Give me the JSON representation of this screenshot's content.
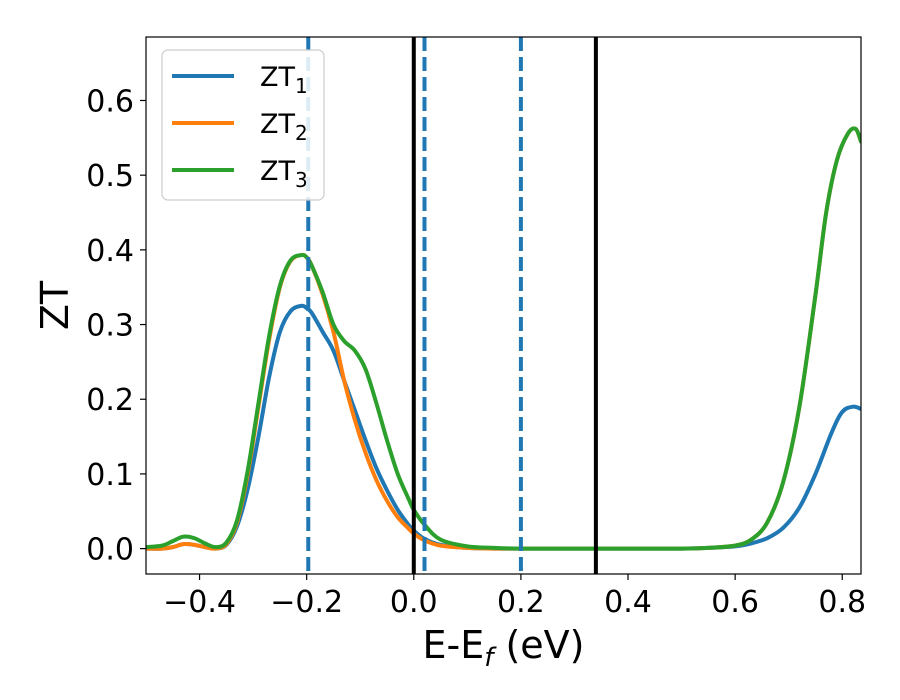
{
  "chart_data": {
    "type": "line",
    "title": "",
    "xlabel": {
      "main": "E-E",
      "sub": "f",
      "tail": " (eV)"
    },
    "ylabel": "ZT",
    "xlim": [
      -0.5,
      0.835
    ],
    "ylim": [
      -0.034,
      0.685
    ],
    "xticks": [
      -0.4,
      -0.2,
      0.0,
      0.2,
      0.4,
      0.6,
      0.8
    ],
    "xtick_labels": [
      "−0.4",
      "−0.2",
      "0.0",
      "0.2",
      "0.4",
      "0.6",
      "0.8"
    ],
    "yticks": [
      0.0,
      0.1,
      0.2,
      0.3,
      0.4,
      0.5,
      0.6
    ],
    "ytick_labels": [
      "0.0",
      "0.1",
      "0.2",
      "0.3",
      "0.4",
      "0.5",
      "0.6"
    ],
    "grid": false,
    "legend_position": "top-left",
    "series": [
      {
        "name": "ZT",
        "sub": "1",
        "color": "#1f77b4",
        "x": [
          -0.5,
          -0.47,
          -0.45,
          -0.43,
          -0.41,
          -0.39,
          -0.37,
          -0.35,
          -0.33,
          -0.31,
          -0.29,
          -0.27,
          -0.25,
          -0.23,
          -0.21,
          -0.2,
          -0.19,
          -0.17,
          -0.15,
          -0.13,
          -0.11,
          -0.09,
          -0.07,
          -0.05,
          -0.03,
          -0.01,
          0.0,
          0.02,
          0.05,
          0.1,
          0.15,
          0.2,
          0.3,
          0.4,
          0.5,
          0.55,
          0.6,
          0.63,
          0.66,
          0.69,
          0.72,
          0.75,
          0.78,
          0.8,
          0.82,
          0.835
        ],
        "y": [
          0.0,
          0.0,
          0.002,
          0.006,
          0.005,
          0.002,
          0.0,
          0.005,
          0.03,
          0.08,
          0.15,
          0.23,
          0.29,
          0.318,
          0.325,
          0.322,
          0.315,
          0.29,
          0.265,
          0.225,
          0.185,
          0.145,
          0.108,
          0.078,
          0.052,
          0.032,
          0.024,
          0.013,
          0.005,
          0.001,
          0.0,
          0.0,
          0.0,
          0.0,
          0.0,
          0.001,
          0.003,
          0.007,
          0.014,
          0.028,
          0.055,
          0.1,
          0.155,
          0.183,
          0.19,
          0.187
        ]
      },
      {
        "name": "ZT",
        "sub": "2",
        "color": "#ff7f0e",
        "x": [
          -0.5,
          -0.47,
          -0.45,
          -0.43,
          -0.41,
          -0.39,
          -0.37,
          -0.35,
          -0.33,
          -0.31,
          -0.29,
          -0.27,
          -0.25,
          -0.23,
          -0.21,
          -0.2,
          -0.19,
          -0.17,
          -0.15,
          -0.13,
          -0.11,
          -0.09,
          -0.07,
          -0.05,
          -0.03,
          -0.01,
          0.0,
          0.02,
          0.05,
          0.1,
          0.15,
          0.2,
          0.3,
          0.4,
          0.5,
          0.55,
          0.6,
          0.63,
          0.66,
          0.69,
          0.72,
          0.75,
          0.77,
          0.79,
          0.81,
          0.825,
          0.835
        ],
        "y": [
          0.0,
          0.0,
          0.002,
          0.006,
          0.005,
          0.002,
          0.0,
          0.006,
          0.035,
          0.1,
          0.19,
          0.28,
          0.35,
          0.385,
          0.393,
          0.39,
          0.378,
          0.34,
          0.29,
          0.225,
          0.172,
          0.128,
          0.092,
          0.064,
          0.042,
          0.027,
          0.02,
          0.011,
          0.004,
          0.001,
          0.0,
          0.0,
          0.0,
          0.0,
          0.0,
          0.001,
          0.004,
          0.012,
          0.035,
          0.09,
          0.19,
          0.34,
          0.45,
          0.52,
          0.555,
          0.562,
          0.545
        ]
      },
      {
        "name": "ZT",
        "sub": "3",
        "color": "#2ca02c",
        "x": [
          -0.5,
          -0.47,
          -0.45,
          -0.43,
          -0.41,
          -0.39,
          -0.37,
          -0.35,
          -0.33,
          -0.31,
          -0.29,
          -0.27,
          -0.25,
          -0.23,
          -0.21,
          -0.2,
          -0.19,
          -0.17,
          -0.15,
          -0.13,
          -0.11,
          -0.09,
          -0.07,
          -0.05,
          -0.03,
          -0.01,
          0.0,
          0.02,
          0.05,
          0.1,
          0.15,
          0.2,
          0.3,
          0.4,
          0.5,
          0.55,
          0.6,
          0.63,
          0.66,
          0.69,
          0.72,
          0.75,
          0.77,
          0.79,
          0.81,
          0.825,
          0.835
        ],
        "y": [
          0.002,
          0.004,
          0.01,
          0.016,
          0.014,
          0.007,
          0.002,
          0.008,
          0.038,
          0.105,
          0.195,
          0.285,
          0.352,
          0.386,
          0.393,
          0.39,
          0.378,
          0.343,
          0.3,
          0.278,
          0.265,
          0.24,
          0.195,
          0.145,
          0.1,
          0.067,
          0.052,
          0.032,
          0.012,
          0.003,
          0.001,
          0.0,
          0.0,
          0.0,
          0.0,
          0.001,
          0.004,
          0.012,
          0.035,
          0.09,
          0.19,
          0.34,
          0.45,
          0.52,
          0.555,
          0.562,
          0.545
        ]
      }
    ],
    "vertical_lines": [
      {
        "x": -0.197,
        "style": "dashed",
        "color": "#1f77b4"
      },
      {
        "x": 0.02,
        "style": "dashed",
        "color": "#1f77b4"
      },
      {
        "x": 0.2,
        "style": "dashed",
        "color": "#1f77b4"
      },
      {
        "x": 0.0,
        "style": "solid",
        "color": "#000000"
      },
      {
        "x": 0.34,
        "style": "solid",
        "color": "#000000"
      }
    ]
  }
}
